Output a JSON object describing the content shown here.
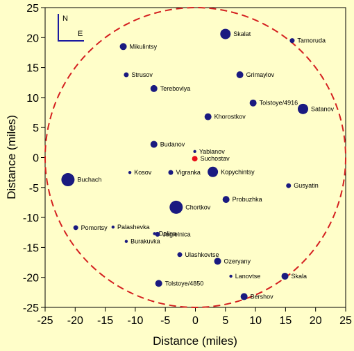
{
  "chart_data": {
    "type": "scatter",
    "title": "",
    "xlabel": "Distance (miles)",
    "ylabel": "Distance (miles)",
    "xlim": [
      -25,
      25
    ],
    "ylim": [
      -25,
      25
    ],
    "xticks": [
      "-25",
      "-20",
      "-15",
      "-10",
      "-5",
      "0",
      "5",
      "10",
      "15",
      "20",
      "25"
    ],
    "yticks": [
      "25",
      "20",
      "15",
      "10",
      "5",
      "0",
      "-5",
      "-10",
      "-15",
      "-20",
      "-25"
    ],
    "grid": false,
    "circle": {
      "center": [
        0,
        0
      ],
      "radius": 25,
      "color": "#d42020",
      "style": "dashed"
    },
    "compass": {
      "north": "N",
      "east": "E",
      "color": "#1a1aa0"
    },
    "colors": {
      "point": "#1a1a80",
      "highlight": "#e8101a",
      "background": "#fffec9"
    },
    "points": [
      {
        "name": "Skalat",
        "x": 5.0,
        "y": 20.6,
        "size": "large"
      },
      {
        "name": "Tarnoruda",
        "x": 16.1,
        "y": 19.5,
        "size": "small"
      },
      {
        "name": "Mikulintsy",
        "x": -12.0,
        "y": 18.5,
        "size": "medium"
      },
      {
        "name": "Strusov",
        "x": -11.5,
        "y": 13.8,
        "size": "small"
      },
      {
        "name": "Grimaylov",
        "x": 7.4,
        "y": 13.8,
        "size": "medium"
      },
      {
        "name": "Terebovlya",
        "x": -6.9,
        "y": 11.5,
        "size": "medium"
      },
      {
        "name": "Tolstoye/4916",
        "x": 9.6,
        "y": 9.1,
        "size": "medium"
      },
      {
        "name": "Satanov",
        "x": 17.9,
        "y": 8.1,
        "size": "large"
      },
      {
        "name": "Khorostkov",
        "x": 2.1,
        "y": 6.8,
        "size": "medium"
      },
      {
        "name": "Budanov",
        "x": -6.9,
        "y": 2.2,
        "size": "medium"
      },
      {
        "name": "Yablanov",
        "x": -0.1,
        "y": 1.0,
        "size": "tiny"
      },
      {
        "name": "Suchostav",
        "x": -0.1,
        "y": -0.2,
        "size": "highlight"
      },
      {
        "name": "Kosov",
        "x": -10.9,
        "y": -2.5,
        "size": "tiny"
      },
      {
        "name": "Vigranka",
        "x": -4.1,
        "y": -2.5,
        "size": "small"
      },
      {
        "name": "Kopychintsy",
        "x": 2.9,
        "y": -2.4,
        "size": "large"
      },
      {
        "name": "Buchach",
        "x": -21.2,
        "y": -3.7,
        "size": "xlarge"
      },
      {
        "name": "Gusyatin",
        "x": 15.5,
        "y": -4.7,
        "size": "small"
      },
      {
        "name": "Probuzhka",
        "x": 5.1,
        "y": -7.0,
        "size": "medium"
      },
      {
        "name": "Chortkov",
        "x": -3.2,
        "y": -8.3,
        "size": "xlarge"
      },
      {
        "name": "Pomortsy",
        "x": -19.9,
        "y": -11.7,
        "size": "small"
      },
      {
        "name": "Palashevka",
        "x": -13.7,
        "y": -11.6,
        "size": "tiny"
      },
      {
        "name": "Dolina",
        "x": -6.8,
        "y": -12.7,
        "size": "tiny"
      },
      {
        "name": "Jagielnica",
        "x": -6.3,
        "y": -12.8,
        "size": "small"
      },
      {
        "name": "Burakuvka",
        "x": -11.5,
        "y": -14.0,
        "size": "tiny"
      },
      {
        "name": "Ulashkovtse",
        "x": -2.6,
        "y": -16.2,
        "size": "small"
      },
      {
        "name": "Ozeryany",
        "x": 3.7,
        "y": -17.3,
        "size": "medium"
      },
      {
        "name": "Lanovtse",
        "x": 5.9,
        "y": -19.8,
        "size": "tiny"
      },
      {
        "name": "Skala",
        "x": 14.9,
        "y": -19.8,
        "size": "medium"
      },
      {
        "name": "Tolstoye/4850",
        "x": -6.1,
        "y": -21.0,
        "size": "medium"
      },
      {
        "name": "Bershov",
        "x": 8.1,
        "y": -23.2,
        "size": "medium"
      }
    ]
  }
}
